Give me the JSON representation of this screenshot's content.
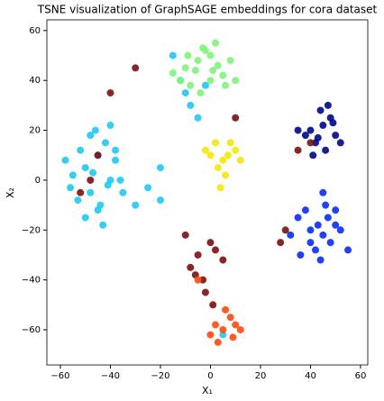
{
  "chart_data": {
    "type": "scatter",
    "title": "TSNE visualization of GraphSAGE embeddings for cora dataset",
    "x_label": "X₁",
    "y_label": "X₂",
    "xlim": [
      -65.4,
      62.9
    ],
    "ylim": [
      -74.1,
      64.3
    ],
    "xticks": [
      {
        "value": -60,
        "label": "−60"
      },
      {
        "value": -40,
        "label": "−40"
      },
      {
        "value": -20,
        "label": "−20"
      },
      0,
      20,
      40,
      60
    ],
    "yticks": [
      {
        "value": -60,
        "label": "−60"
      },
      {
        "value": -40,
        "label": "−40"
      },
      {
        "value": -20,
        "label": "−20"
      },
      0,
      20,
      40,
      60
    ],
    "series": [
      {
        "color": "#1fc8f0",
        "x": [
          -50,
          -45,
          -40,
          -55,
          -48,
          -42,
          -38,
          -52,
          -46,
          -44,
          -58,
          -36,
          -50,
          -43,
          -47,
          -40,
          -53,
          -35,
          -30,
          -25,
          -20,
          -45,
          -48,
          -41,
          -12,
          -15,
          -10,
          -8,
          -5,
          -20,
          -2,
          5,
          -38,
          -56
        ],
        "y": [
          5,
          10,
          0,
          2,
          -5,
          15,
          8,
          12,
          20,
          -10,
          8,
          0,
          -15,
          -18,
          3,
          22,
          -8,
          -5,
          -10,
          -3,
          5,
          -12,
          18,
          -2,
          40,
          50,
          35,
          30,
          25,
          -8,
          38,
          -62,
          12,
          -3
        ]
      },
      {
        "color": "#7ef57a",
        "x": [
          -10,
          -5,
          0,
          5,
          -8,
          -2,
          3,
          -12,
          -6,
          2,
          8,
          -4,
          -15,
          0,
          6,
          -9,
          1,
          10,
          -3
        ],
        "y": [
          45,
          48,
          50,
          42,
          38,
          52,
          46,
          40,
          44,
          55,
          48,
          35,
          43,
          40,
          38,
          50,
          44,
          40,
          53
        ]
      },
      {
        "color": "#00088a",
        "x": [
          40,
          45,
          50,
          42,
          48,
          38,
          44,
          52,
          46,
          35,
          41,
          49,
          43,
          47
        ],
        "y": [
          20,
          22,
          18,
          15,
          25,
          18,
          28,
          15,
          12,
          20,
          10,
          23,
          17,
          30
        ]
      },
      {
        "color": "#0a2cf5",
        "x": [
          40,
          45,
          50,
          35,
          42,
          48,
          38,
          52,
          44,
          46,
          32,
          55,
          40,
          47,
          43,
          36,
          50,
          45
        ],
        "y": [
          -20,
          -22,
          -18,
          -15,
          -28,
          -25,
          -12,
          -20,
          -32,
          -10,
          -22,
          -28,
          -25,
          -15,
          -18,
          -30,
          -12,
          -5
        ]
      },
      {
        "color": "#f5e60a",
        "x": [
          0,
          5,
          10,
          3,
          8,
          -2,
          6,
          12,
          2,
          7,
          4
        ],
        "y": [
          10,
          8,
          12,
          5,
          15,
          12,
          2,
          8,
          15,
          10,
          -3
        ]
      },
      {
        "color": "#7a1010",
        "x": [
          -5,
          0,
          -8,
          -3,
          2,
          5,
          -10,
          -2,
          -6,
          1,
          -48,
          -52,
          -45,
          40,
          35,
          28,
          30,
          10,
          -30,
          -40
        ],
        "y": [
          -30,
          -25,
          -35,
          -40,
          -28,
          -32,
          -22,
          -45,
          -38,
          -50,
          0,
          -5,
          10,
          15,
          12,
          -25,
          -20,
          25,
          45,
          35
        ]
      },
      {
        "color": "#ff4a0a",
        "x": [
          5,
          10,
          0,
          8,
          3,
          12,
          6,
          2,
          9,
          -5
        ],
        "y": [
          -60,
          -58,
          -62,
          -55,
          -65,
          -60,
          -52,
          -58,
          -63,
          -40
        ]
      }
    ]
  }
}
